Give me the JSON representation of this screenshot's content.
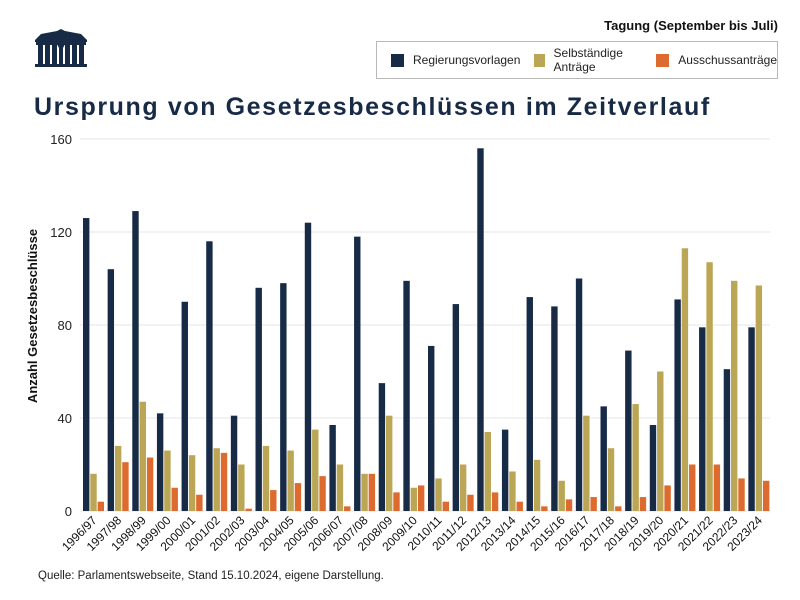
{
  "header": {
    "logo": "parliament-logo-icon",
    "legend_title": "Tagung (September bis Juli)"
  },
  "legend": [
    {
      "label": "Regierungsvorlagen",
      "color": "#172a46"
    },
    {
      "label": "Selbständige Anträge",
      "color": "#bba655"
    },
    {
      "label": "Ausschussanträge",
      "color": "#dd6b30"
    }
  ],
  "footer": {
    "source": "Quelle: Parlamentswebseite, Stand 15.10.2024, eigene Darstellung."
  },
  "chart_data": {
    "type": "bar",
    "title": "Ursprung von Gesetzesbeschlüssen im Zeitverlauf",
    "xlabel": "",
    "ylabel": "Anzahl Gesetzesbeschlüsse",
    "ylim": [
      0,
      160
    ],
    "yticks": [
      0,
      40,
      80,
      120,
      160
    ],
    "grid": true,
    "legend_title": "Tagung (September bis Juli)",
    "legend_position": "top-right",
    "categories": [
      "1996/97",
      "1997/98",
      "1998/99",
      "1999/00",
      "2000/01",
      "2001/02",
      "2002/03",
      "2003/04",
      "2004/05",
      "2005/06",
      "2006/07",
      "2007/08",
      "2008/09",
      "2009/10",
      "2010/11",
      "2011/12",
      "2012/13",
      "2013/14",
      "2014/15",
      "2015/16",
      "2016/17",
      "2017/18",
      "2018/19",
      "2019/20",
      "2020/21",
      "2021/22",
      "2022/23",
      "2023/24"
    ],
    "series": [
      {
        "name": "Regierungsvorlagen",
        "color": "#172a46",
        "values": [
          126,
          104,
          129,
          42,
          90,
          116,
          41,
          96,
          98,
          124,
          37,
          118,
          55,
          99,
          71,
          89,
          156,
          35,
          92,
          88,
          100,
          45,
          69,
          37,
          91,
          79,
          61,
          79
        ]
      },
      {
        "name": "Selbständige Anträge",
        "color": "#bba655",
        "values": [
          16,
          28,
          47,
          26,
          24,
          27,
          20,
          28,
          26,
          35,
          20,
          16,
          41,
          10,
          14,
          20,
          34,
          17,
          22,
          13,
          41,
          27,
          46,
          60,
          113,
          107,
          99,
          97
        ]
      },
      {
        "name": "Ausschussanträge",
        "color": "#dd6b30",
        "values": [
          4,
          21,
          23,
          10,
          7,
          25,
          1,
          9,
          12,
          15,
          2,
          16,
          8,
          11,
          4,
          7,
          8,
          4,
          2,
          5,
          6,
          2,
          6,
          11,
          20,
          20,
          14,
          13
        ]
      }
    ]
  }
}
